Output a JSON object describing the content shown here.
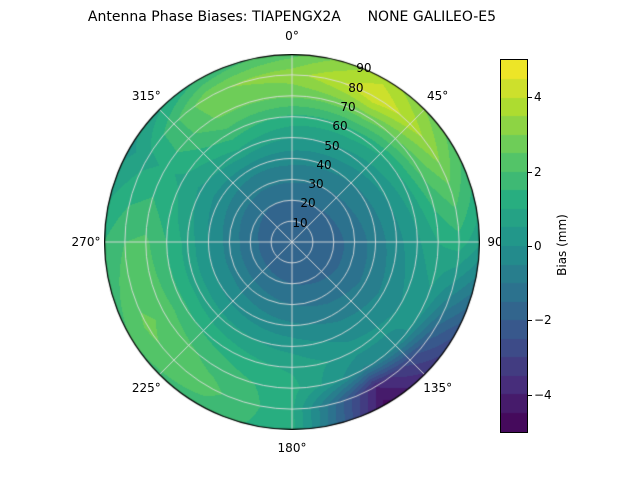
{
  "title": "Antenna Phase Biases: TIAPENGX2A      NONE GALILEO-E5",
  "chart_data": {
    "type": "heatmap",
    "projection": "polar",
    "title": "Antenna Phase Biases: TIAPENGX2A      NONE GALILEO-E5",
    "angular_ticks": [
      {
        "deg": 0,
        "label": "0°"
      },
      {
        "deg": 45,
        "label": "45°"
      },
      {
        "deg": 90,
        "label": "90°"
      },
      {
        "deg": 135,
        "label": "135°"
      },
      {
        "deg": 180,
        "label": "180°"
      },
      {
        "deg": 225,
        "label": "225°"
      },
      {
        "deg": 270,
        "label": "270°"
      },
      {
        "deg": 315,
        "label": "315°"
      }
    ],
    "radial_ticks": [
      {
        "r": 10,
        "label": "10"
      },
      {
        "r": 20,
        "label": "20"
      },
      {
        "r": 30,
        "label": "30"
      },
      {
        "r": 40,
        "label": "40"
      },
      {
        "r": 50,
        "label": "50"
      },
      {
        "r": 60,
        "label": "60"
      },
      {
        "r": 70,
        "label": "70"
      },
      {
        "r": 80,
        "label": "80"
      },
      {
        "r": 90,
        "label": "90"
      }
    ],
    "radial_label_angle_deg": 22.5,
    "colorbar": {
      "label": "Bias (mm)",
      "vmin": -5,
      "vmax": 5,
      "level_step": 0.5,
      "colormap": "viridis",
      "ticks": [
        {
          "value": 4,
          "label": "4"
        },
        {
          "value": 2,
          "label": "2"
        },
        {
          "value": 0,
          "label": "0"
        },
        {
          "value": -2,
          "label": "−2"
        },
        {
          "value": -4,
          "label": "−4"
        }
      ],
      "stops": [
        {
          "t": 0.0,
          "color": "#440154"
        },
        {
          "t": 0.125,
          "color": "#472d7b"
        },
        {
          "t": 0.25,
          "color": "#3b528b"
        },
        {
          "t": 0.375,
          "color": "#2c728e"
        },
        {
          "t": 0.5,
          "color": "#21918c"
        },
        {
          "t": 0.625,
          "color": "#28ae80"
        },
        {
          "t": 0.75,
          "color": "#5ec962"
        },
        {
          "t": 0.875,
          "color": "#addc30"
        },
        {
          "t": 1.0,
          "color": "#fde725"
        }
      ]
    },
    "grid": {
      "azimuth_deg": [
        0,
        30,
        60,
        90,
        120,
        150,
        180,
        210,
        240,
        270,
        300,
        330
      ],
      "zenith_deg": [
        10,
        20,
        30,
        40,
        50,
        60,
        70,
        80,
        90
      ],
      "bias_mm": [
        [
          -1.8,
          -1.8,
          -1.8,
          -1.8,
          -1.8,
          -1.8,
          -1.8,
          -1.8,
          -1.8,
          -1.8,
          -1.8,
          -1.8
        ],
        [
          -1.5,
          -1.5,
          -1.6,
          -1.7,
          -1.7,
          -1.6,
          -1.5,
          -1.4,
          -1.3,
          -1.3,
          -1.4,
          -1.5
        ],
        [
          -0.9,
          -1.0,
          -1.1,
          -1.3,
          -1.3,
          -1.2,
          -1.0,
          -0.8,
          -0.7,
          -0.7,
          -0.8,
          -0.9
        ],
        [
          -0.3,
          -0.4,
          -0.6,
          -0.8,
          -0.9,
          -0.7,
          -0.4,
          -0.2,
          0.0,
          0.0,
          -0.2,
          -0.3
        ],
        [
          0.5,
          0.4,
          0.1,
          -0.2,
          -0.4,
          -0.2,
          0.3,
          0.6,
          0.8,
          0.8,
          0.4,
          0.9
        ],
        [
          1.4,
          1.3,
          0.9,
          0.4,
          0.0,
          0.2,
          0.9,
          1.3,
          1.6,
          1.5,
          0.9,
          1.8
        ],
        [
          2.6,
          2.8,
          2.2,
          1.0,
          0.2,
          -0.6,
          1.2,
          1.8,
          2.4,
          2.1,
          1.1,
          2.6
        ],
        [
          3.3,
          4.5,
          3.1,
          1.3,
          -1.5,
          -4.0,
          1.1,
          2.2,
          2.6,
          2.0,
          0.8,
          2.9
        ],
        [
          2.3,
          3.8,
          2.2,
          0.6,
          -2.5,
          -4.7,
          1.2,
          1.8,
          2.0,
          1.5,
          0.3,
          1.5
        ]
      ]
    }
  }
}
